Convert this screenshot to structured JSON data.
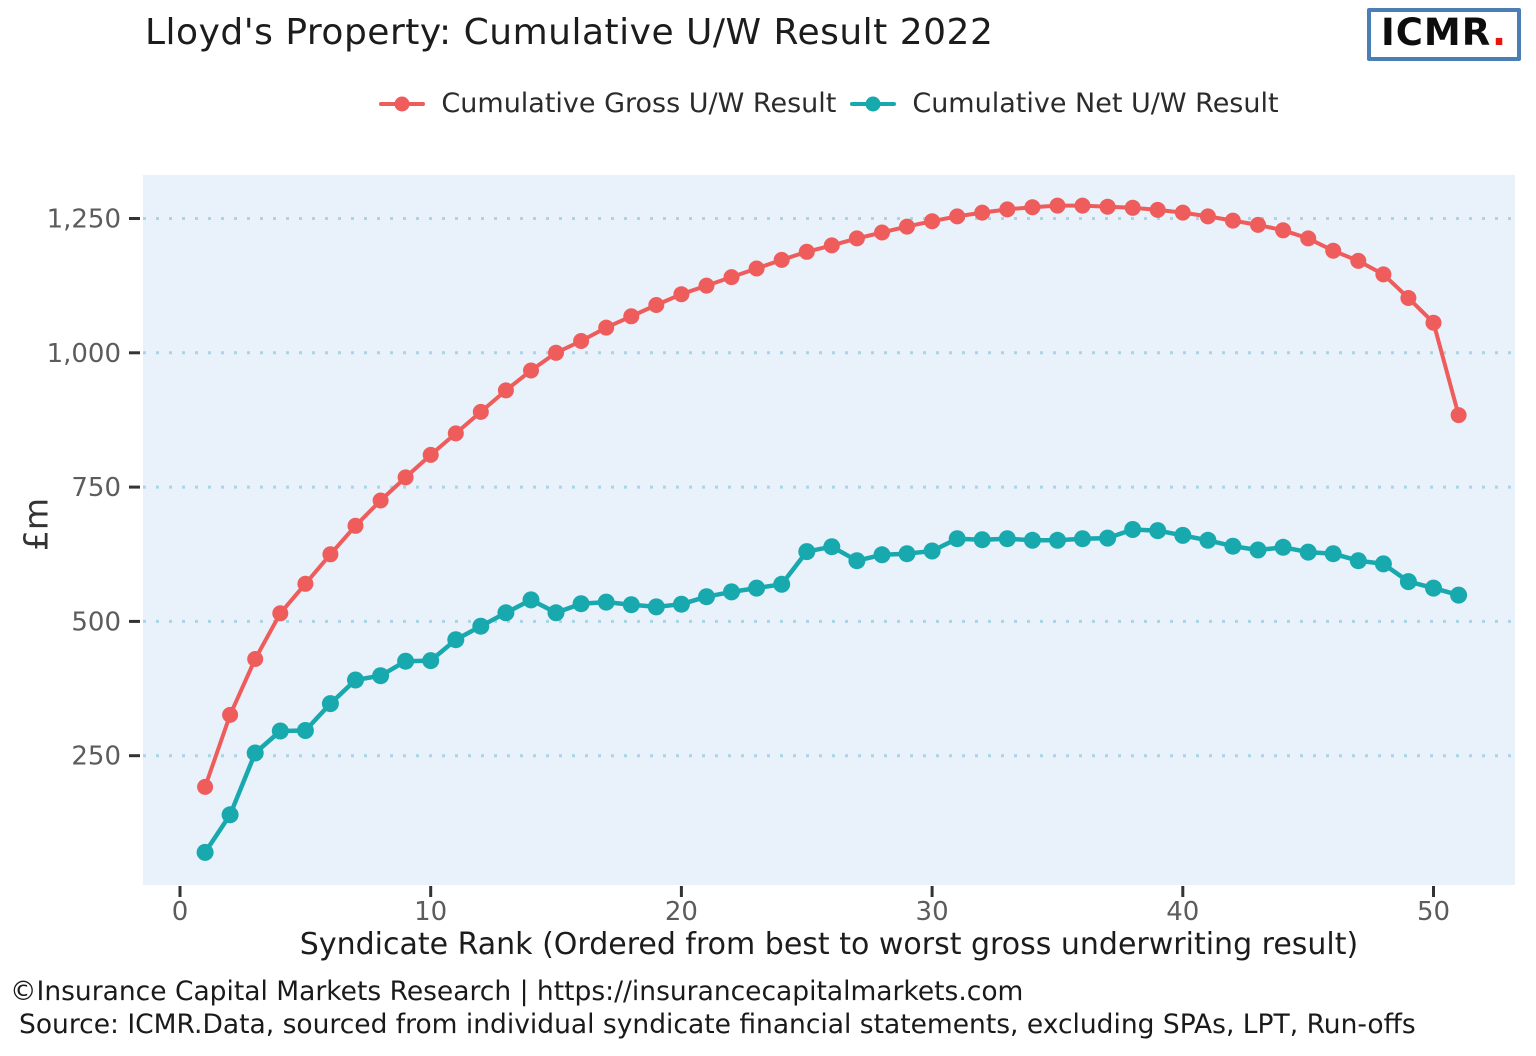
{
  "header": {
    "logo_text": "ICMR",
    "logo_dot": "."
  },
  "chart_data": {
    "type": "line",
    "title": "Lloyd's Property: Cumulative U/W Result 2022",
    "xlabel": "Syndicate Rank (Ordered from best to worst gross underwriting result)",
    "ylabel": "£m",
    "legend_position": "top",
    "grid": "horizontal-dotted",
    "xlim": [
      -1.5,
      53
    ],
    "ylim": [
      0,
      1330
    ],
    "x_ticks": [
      0,
      10,
      20,
      30,
      40,
      50
    ],
    "y_ticks": [
      {
        "value": 250,
        "label": "250"
      },
      {
        "value": 500,
        "label": "500"
      },
      {
        "value": 750,
        "label": "750"
      },
      {
        "value": 1000,
        "label": "1,000"
      },
      {
        "value": 1250,
        "label": "1,250"
      }
    ],
    "x": [
      1,
      2,
      3,
      4,
      5,
      6,
      7,
      8,
      9,
      10,
      11,
      12,
      13,
      14,
      15,
      16,
      17,
      18,
      19,
      20,
      21,
      22,
      23,
      24,
      25,
      26,
      27,
      28,
      29,
      30,
      31,
      32,
      33,
      34,
      35,
      36,
      37,
      38,
      39,
      40,
      41,
      42,
      43,
      44,
      45,
      46,
      47,
      48,
      49,
      50,
      51
    ],
    "series": [
      {
        "name": "Cumulative Gross U/W Result",
        "color": "#ee5c5c",
        "values": [
          192,
          326,
          430,
          515,
          570,
          625,
          678,
          725,
          768,
          810,
          850,
          890,
          930,
          967,
          1000,
          1022,
          1047,
          1068,
          1089,
          1109,
          1125,
          1141,
          1157,
          1173,
          1188,
          1200,
          1213,
          1224,
          1235,
          1245,
          1254,
          1261,
          1267,
          1271,
          1274,
          1274,
          1272,
          1270,
          1266,
          1261,
          1254,
          1246,
          1238,
          1228,
          1213,
          1190,
          1171,
          1146,
          1102,
          1056,
          884
        ]
      },
      {
        "name": "Cumulative Net U/W Result",
        "color": "#17a9ad",
        "values": [
          70,
          140,
          255,
          296,
          297,
          347,
          391,
          399,
          426,
          427,
          466,
          491,
          516,
          540,
          516,
          533,
          536,
          531,
          527,
          532,
          546,
          555,
          562,
          569,
          630,
          639,
          613,
          624,
          626,
          631,
          654,
          652,
          654,
          651,
          651,
          654,
          655,
          671,
          669,
          660,
          651,
          640,
          633,
          638,
          629,
          626,
          613,
          607,
          574,
          562,
          549
        ]
      }
    ],
    "colors": {
      "panel_background": "#e9f1fa",
      "gridline": "#abd5e4",
      "axis_tick": "#333333",
      "tick_label": "#5c5c5c"
    }
  },
  "footer": {
    "line1": "©Insurance Capital Markets Research | https://insurancecapitalmarkets.com",
    "line2": "Source: ICMR.Data, sourced from individual syndicate financial statements, excluding SPAs, LPT, Run-offs"
  }
}
